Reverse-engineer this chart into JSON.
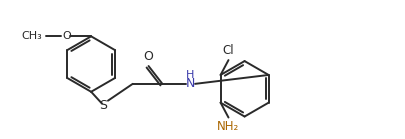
{
  "bg_color": "#ffffff",
  "line_color": "#2a2a2a",
  "text_color": "#000000",
  "lw": 1.4,
  "figsize": [
    4.06,
    1.39
  ],
  "dpi": 100,
  "ring_r": 0.3,
  "xlim": [
    0.0,
    4.06
  ],
  "ylim": [
    0.0,
    1.39
  ]
}
